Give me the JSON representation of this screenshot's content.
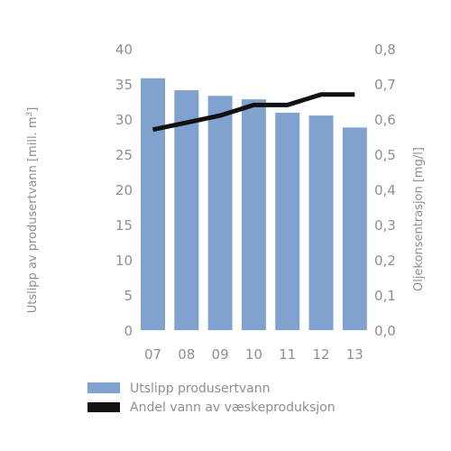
{
  "chart_data": {
    "type": "bar",
    "categories": [
      "07",
      "08",
      "09",
      "10",
      "11",
      "12",
      "13"
    ],
    "series": [
      {
        "name": "Utslipp produsertvann",
        "type": "bar",
        "axis": "left",
        "color": "#7fa2cf",
        "values": [
          35.8,
          34.1,
          33.3,
          32.8,
          30.9,
          30.5,
          28.8
        ]
      },
      {
        "name": "Andel vann av væskeproduksjon",
        "type": "line",
        "axis": "right",
        "color": "#111111",
        "values": [
          0.57,
          0.59,
          0.61,
          0.64,
          0.64,
          0.67,
          0.67
        ]
      }
    ],
    "ylabel": "Utslipp av produsertvann [mill. m",
    "ylabel_superscript": "3",
    "ylabel_right": "Oljekonsentrasjon [mg/l]",
    "ylim": [
      0,
      40
    ],
    "ylim_right": [
      0,
      0.8
    ],
    "yticks": [
      "0",
      "5",
      "10",
      "15",
      "20",
      "25",
      "30",
      "35",
      "40"
    ],
    "yticks_right": [
      "0,0",
      "0,1",
      "0,2",
      "0,3",
      "0,4",
      "0,5",
      "0,6",
      "0,7",
      "0,8"
    ],
    "grid": false,
    "legend_position": "bottom-left"
  }
}
